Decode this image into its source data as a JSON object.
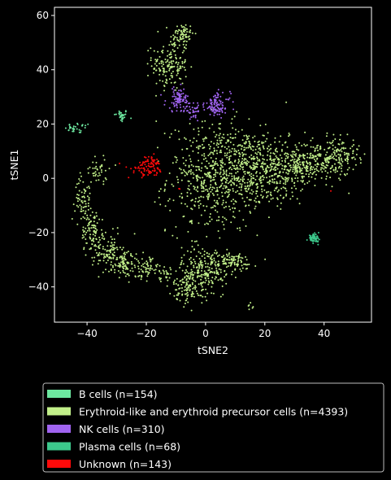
{
  "chart_data": {
    "type": "scatter",
    "title": "",
    "xlabel": "tSNE2",
    "ylabel": "tSNE1",
    "xlim": [
      -51,
      56
    ],
    "ylim": [
      -53,
      63
    ],
    "xticks": [
      -40,
      -20,
      0,
      20,
      40
    ],
    "yticks": [
      -40,
      -20,
      0,
      20,
      40,
      60
    ],
    "xtick_labels": [
      "−40",
      "−20",
      "0",
      "20",
      "40"
    ],
    "ytick_labels": [
      "−40",
      "−20",
      "0",
      "20",
      "40",
      "60"
    ],
    "grid": false,
    "legend_position": "below plot",
    "background": "#000000",
    "series": [
      {
        "name": "B cells (n=154)",
        "color": "#6de8a0",
        "clusters": [
          {
            "x": -28.5,
            "y": 23,
            "sx": 1.2,
            "sy": 1.2,
            "n": 30
          },
          {
            "x": -43,
            "y": 18.5,
            "sx": 2.2,
            "sy": 1.0,
            "n": 30
          }
        ]
      },
      {
        "name": "Erythroid-like and erythroid precursor cells (n=4393)",
        "color": "#c2f08a",
        "clusters": [
          {
            "x": -8,
            "y": 53,
            "sx": 2.0,
            "sy": 2.2,
            "n": 70
          },
          {
            "x": -12,
            "y": 42,
            "sx": 3.0,
            "sy": 5.0,
            "n": 160
          },
          {
            "x": 3,
            "y": 0,
            "sx": 8,
            "sy": 10,
            "n": 500
          },
          {
            "x": 14,
            "y": 4,
            "sx": 8,
            "sy": 7,
            "n": 380
          },
          {
            "x": 27,
            "y": 4,
            "sx": 6,
            "sy": 5,
            "n": 260
          },
          {
            "x": 38,
            "y": 6,
            "sx": 5,
            "sy": 4,
            "n": 200
          },
          {
            "x": 46,
            "y": 9,
            "sx": 3,
            "sy": 3,
            "n": 90
          },
          {
            "x": 0,
            "y": -33,
            "sx": 4,
            "sy": 4,
            "n": 200
          },
          {
            "x": -5,
            "y": -40,
            "sx": 3,
            "sy": 3,
            "n": 120
          },
          {
            "x": 9,
            "y": -31,
            "sx": 4,
            "sy": 2,
            "n": 80
          },
          {
            "x": -41,
            "y": -8,
            "sx": 1.5,
            "sy": 4,
            "n": 70
          },
          {
            "x": -38,
            "y": -20,
            "sx": 2,
            "sy": 4,
            "n": 90
          },
          {
            "x": -33,
            "y": -27,
            "sx": 2.5,
            "sy": 3,
            "n": 90
          },
          {
            "x": -27,
            "y": -32,
            "sx": 3,
            "sy": 2.5,
            "n": 100
          },
          {
            "x": -20,
            "y": -33,
            "sx": 2,
            "sy": 2,
            "n": 50
          },
          {
            "x": -36,
            "y": 3,
            "sx": 2.5,
            "sy": 2.5,
            "n": 40
          },
          {
            "x": -14,
            "y": -36,
            "sx": 2,
            "sy": 1.5,
            "n": 30
          },
          {
            "x": 15,
            "y": -47,
            "sx": 0.5,
            "sy": 0.8,
            "n": 6
          }
        ]
      },
      {
        "name": "NK cells (n=310)",
        "color": "#a064f0",
        "clusters": [
          {
            "x": -9,
            "y": 29,
            "sx": 2.2,
            "sy": 2.2,
            "n": 90
          },
          {
            "x": 4,
            "y": 27,
            "sx": 2.2,
            "sy": 2.2,
            "n": 100
          },
          {
            "x": -4,
            "y": 25,
            "sx": 1.5,
            "sy": 1.2,
            "n": 40
          }
        ]
      },
      {
        "name": "Plasma cells (n=68)",
        "color": "#3cc88c",
        "clusters": [
          {
            "x": 36.5,
            "y": -22,
            "sx": 0.9,
            "sy": 0.7,
            "n": 68
          }
        ]
      },
      {
        "name": "Unknown (n=143)",
        "color": "#ff0a0a",
        "clusters": [
          {
            "x": -20,
            "y": 3,
            "sx": 3.0,
            "sy": 1.5,
            "n": 70
          },
          {
            "x": -18,
            "y": 6,
            "sx": 1.5,
            "sy": 1.0,
            "n": 30
          },
          {
            "x": -9,
            "y": -4,
            "sx": 0.3,
            "sy": 0.3,
            "n": 2
          },
          {
            "x": 42,
            "y": -5,
            "sx": 0.3,
            "sy": 0.3,
            "n": 1
          }
        ]
      }
    ]
  }
}
